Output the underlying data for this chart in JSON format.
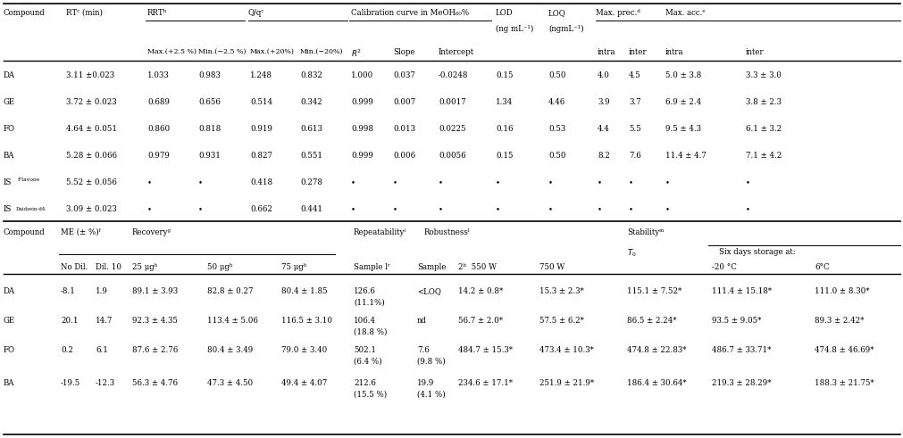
{
  "fig_width": 10.12,
  "fig_height": 4.91,
  "bg_color": "#ffffff",
  "font_size": 6.2,
  "top_data": [
    [
      "DA",
      "3.11 ±0.023",
      "1.033",
      "0.983",
      "1.248",
      "0.832",
      "1.000",
      "0.037",
      "-0.0248",
      "0.15",
      "0.50",
      "4.0",
      "4.5",
      "5.0 ± 3.8",
      "3.3 ± 3.0"
    ],
    [
      "GE",
      "3.72 ± 0.023",
      "0.689",
      "0.656",
      "0.514",
      "0.342",
      "0.999",
      "0.007",
      "0.0017",
      "1.34",
      "4.46",
      "3.9",
      "3.7",
      "6.9 ± 2.4",
      "3.8 ± 2.3"
    ],
    [
      "FO",
      "4.64 ± 0.051",
      "0.860",
      "0.818",
      "0.919",
      "0.613",
      "0.998",
      "0.013",
      "0.0225",
      "0.16",
      "0.53",
      "4.4",
      "5.5",
      "9.5 ± 4.3",
      "6.1 ± 3.2"
    ],
    [
      "BA",
      "5.28 ± 0.066",
      "0.979",
      "0.931",
      "0.827",
      "0.551",
      "0.999",
      "0.006",
      "0.0056",
      "0.15",
      "0.50",
      "8.2",
      "7.6",
      "11.4 ± 4.7",
      "7.1 ± 4.2"
    ],
    [
      "IS_F",
      "5.52 ± 0.056",
      "-",
      "-",
      "0.418",
      "0.278",
      "-",
      "-",
      "-",
      "-",
      "-",
      "-",
      "-",
      "-",
      "-"
    ],
    [
      "IS_D",
      "3.09 ± 0.023",
      "-",
      "-",
      "0.662",
      "0.441",
      "-",
      "-",
      "-",
      "-",
      "-",
      "-",
      "-",
      "-",
      "-"
    ]
  ],
  "bot_data": [
    [
      "DA",
      "-8.1",
      "1.9",
      "89.1 ± 3.93",
      "82.8 ± 0.27",
      "80.4 ± 1.85",
      "126.6",
      "(11.1%)",
      "<LOQ",
      "",
      "14.2 ± 0.8*",
      "15.3 ± 2.3*",
      "115.1 ± 7.52*",
      "111.4 ± 15.18*",
      "111.0 ± 8.30*"
    ],
    [
      "GE",
      "20.1",
      "14.7",
      "92.3 ± 4.35",
      "113.4 ± 5.06",
      "116.5 ± 3.10",
      "106.4",
      "(18.8 %)",
      "nd",
      "",
      "56.7 ± 2.0*",
      "57.5 ± 6.2*",
      "86.5 ± 2.24*",
      "93.5 ± 9.05*",
      "89.3 ± 2.42*"
    ],
    [
      "FO",
      "0.2",
      "6.1",
      "87.6 ± 2.76",
      "80.4 ± 3.49",
      "79.0 ± 3.40",
      "502.1",
      "(6.4 %)",
      "7.6",
      "(9.8 %)",
      "484.7 ± 15.3*",
      "473.4 ± 10.3*",
      "474.8 ± 22.83*",
      "486.7 ± 33.71*",
      "474.8 ± 46.69*"
    ],
    [
      "BA",
      "-19.5",
      "-12.3",
      "56.3 ± 4.76",
      "47.3 ± 4.50",
      "49.4 ± 4.07",
      "212.6",
      "(15.5 %)",
      "19.9",
      "(4.1 %)",
      "234.6 ± 17.1*",
      "251.9 ± 21.9*",
      "186.4 ± 30.64*",
      "219.3 ± 28.29*",
      "188.3 ± 21.75*"
    ]
  ]
}
